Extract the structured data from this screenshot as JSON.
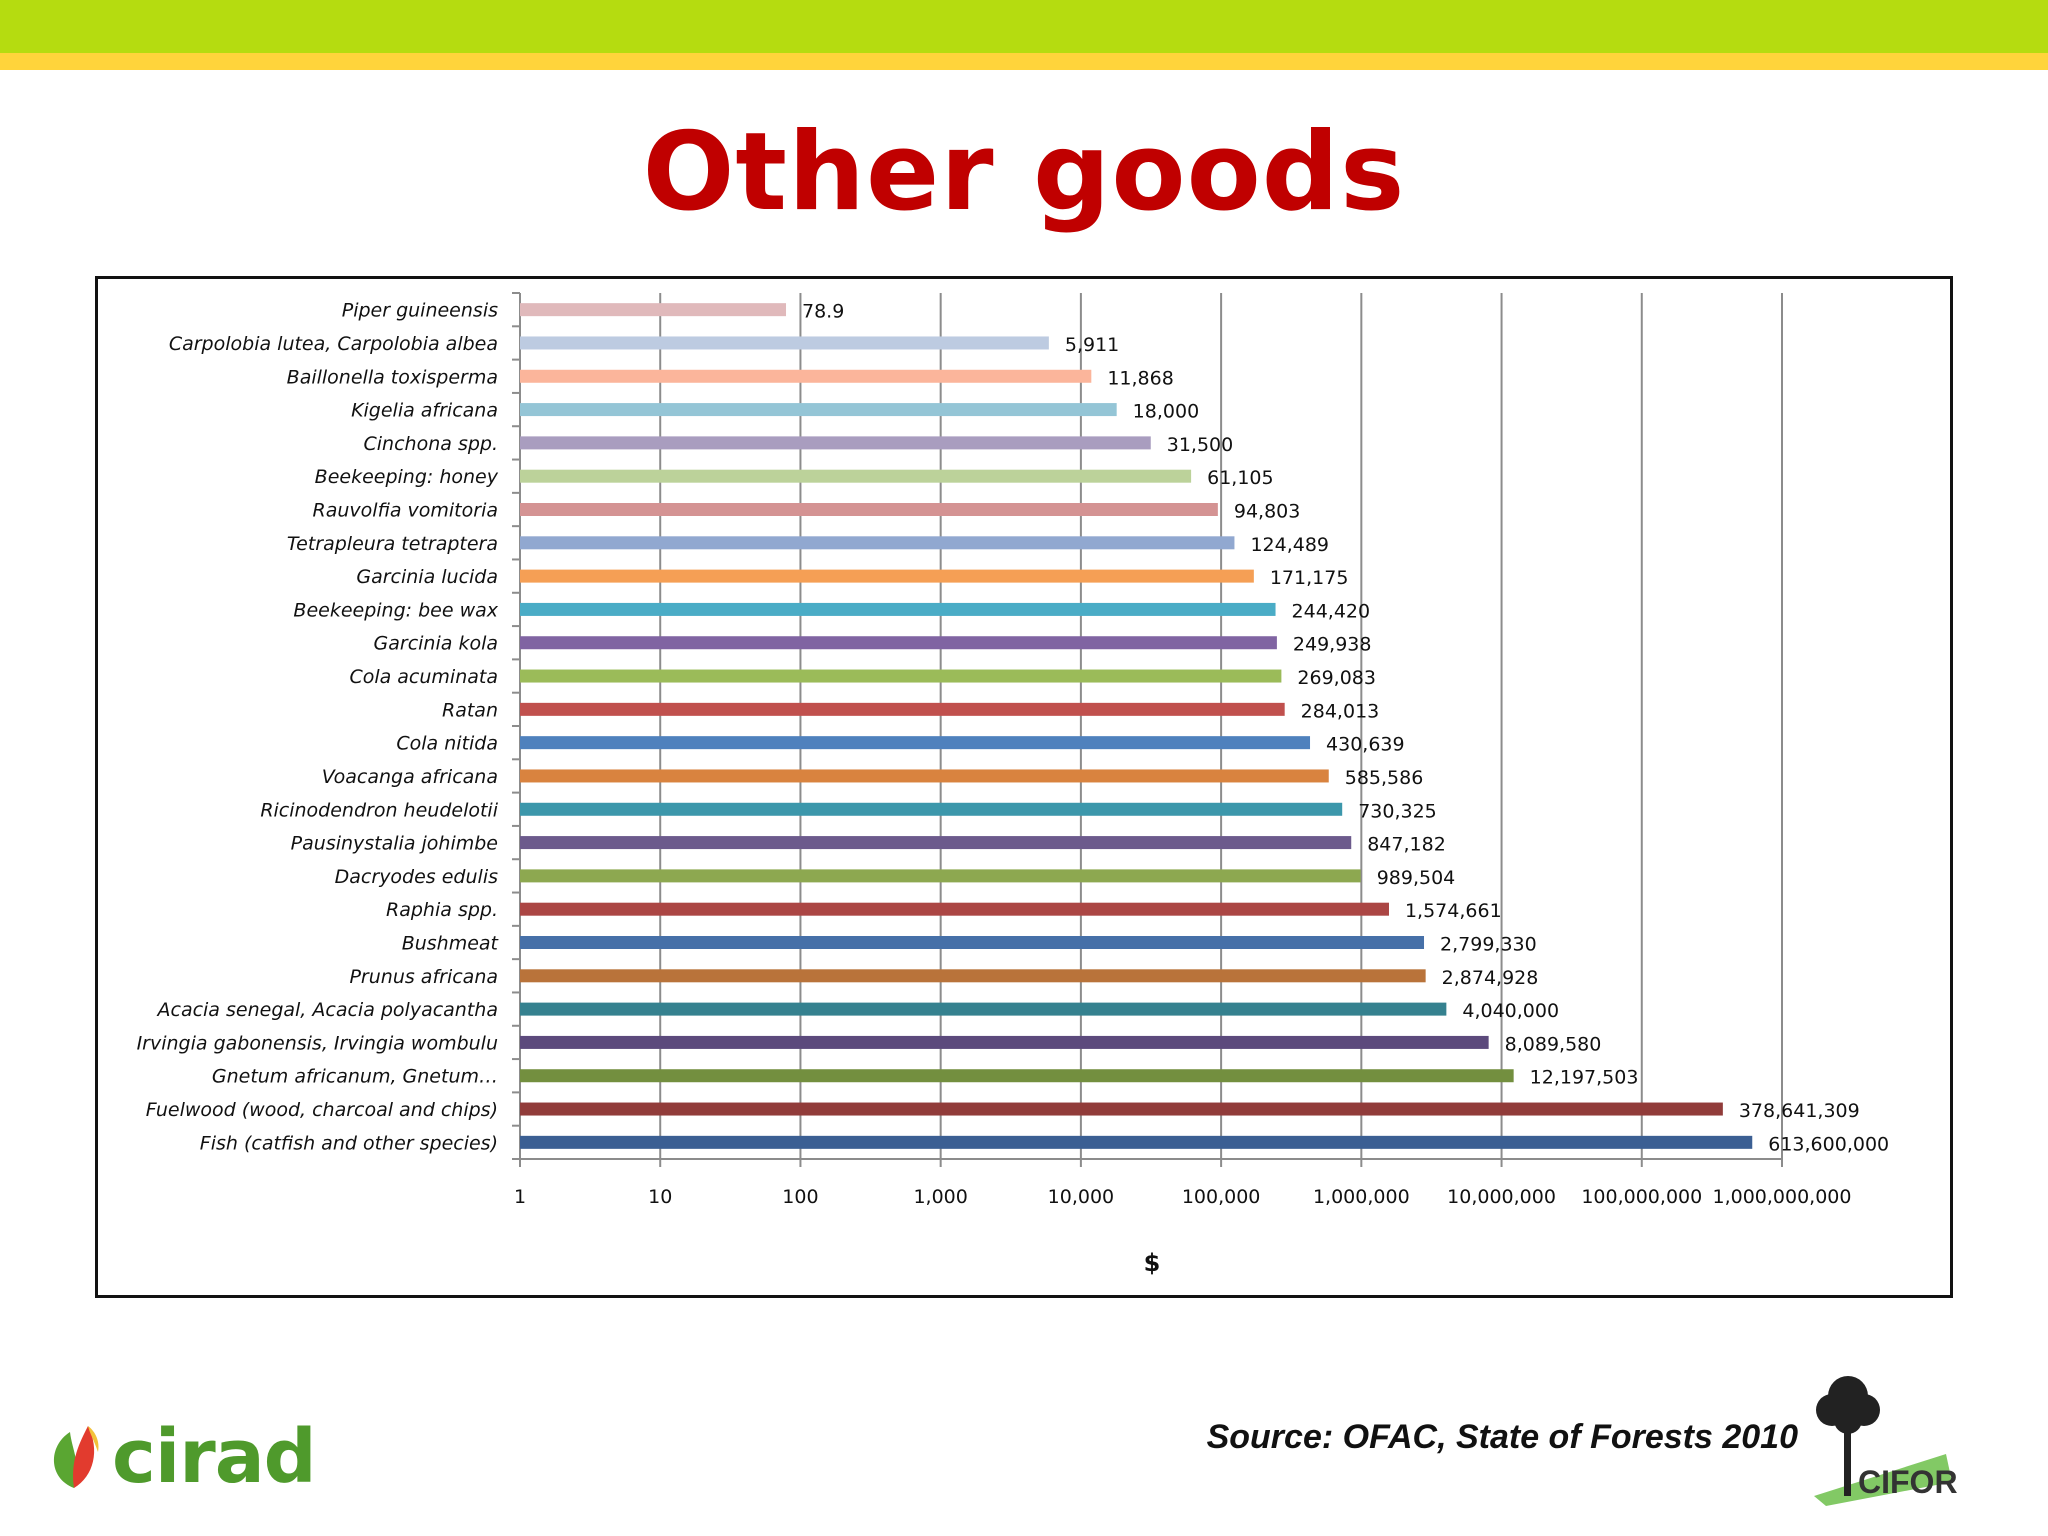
{
  "header": {
    "title": "Other goods"
  },
  "source_text": "Source: OFAC, State of Forests 2010",
  "logos": {
    "left": "cirad",
    "right": "CIFOR"
  },
  "colors": {
    "title": "#c00000",
    "top_band": "#b5dc10",
    "sub_band": "#ffd43b"
  },
  "chart_data": {
    "type": "bar",
    "orientation": "horizontal",
    "title": "Other goods",
    "xlabel": "$",
    "ylabel": "",
    "x_scale": "log",
    "xlim": [
      1,
      1000000000
    ],
    "x_ticks": [
      "1",
      "10",
      "100",
      "1,000",
      "10,000",
      "100,000",
      "1,000,000",
      "10,000,000",
      "100,000,000",
      "1,000,000,000"
    ],
    "grid": "vertical major gridlines",
    "legend": "none",
    "categories": [
      "Piper guineensis",
      "Carpolobia lutea,  Carpolobia albea",
      "Baillonella toxisperma",
      "Kigelia africana",
      "Cinchona spp.",
      "Beekeeping: honey",
      "Rauvolfia vomitoria",
      "Tetrapleura tetraptera",
      "Garcinia lucida",
      "Beekeeping:  bee wax",
      "Garcinia kola",
      "Cola acuminata",
      "Ratan",
      "Cola nitida",
      "Voacanga africana",
      "Ricinodendron heudelotii",
      "Pausinystalia johimbe",
      "Dacryodes edulis",
      "Raphia spp.",
      "Bushmeat",
      "Prunus africana",
      "Acacia senegal, Acacia polyacantha",
      "Irvingia gabonensis, Irvingia wombulu",
      "Gnetum africanum, Gnetum…",
      "Fuelwood (wood, charcoal and chips)",
      "Fish (catfish and other species)"
    ],
    "values": [
      78.9,
      5911,
      11868,
      18000,
      31500,
      61105,
      94803,
      124489,
      171175,
      244420,
      249938,
      269083,
      284013,
      430639,
      585586,
      730325,
      847182,
      989504,
      1574661,
      2799330,
      2874928,
      4040000,
      8089580,
      12197503,
      378641309,
      613600000
    ],
    "value_labels": [
      "78.9",
      "5,911",
      "11,868",
      "18,000",
      "31,500",
      "61,105",
      "94,803",
      "124,489",
      "171,175",
      "244,420",
      "249,938",
      "269,083",
      "284,013",
      "430,639",
      "585,586",
      "730,325",
      "847,182",
      "989,504",
      "1,574,661",
      "2,799,330",
      "2,874,928",
      "4,040,000",
      "8,089,580",
      "12,197,503",
      "378,641,309",
      "613,600,000"
    ],
    "bar_colors": [
      "#e0b9bb",
      "#bdcbe1",
      "#fbb59b",
      "#94c5d6",
      "#a99dbf",
      "#bcd29a",
      "#d49393",
      "#91a8d0",
      "#f59f55",
      "#4aacc6",
      "#8064a2",
      "#9bbb59",
      "#c0504d",
      "#4f81bd",
      "#d9833f",
      "#3c97ab",
      "#6c5a8c",
      "#8da850",
      "#ab4644",
      "#4670a8",
      "#b9733a",
      "#35818f",
      "#5c4a7c",
      "#738f3f",
      "#913c3a",
      "#3b5f93"
    ]
  }
}
